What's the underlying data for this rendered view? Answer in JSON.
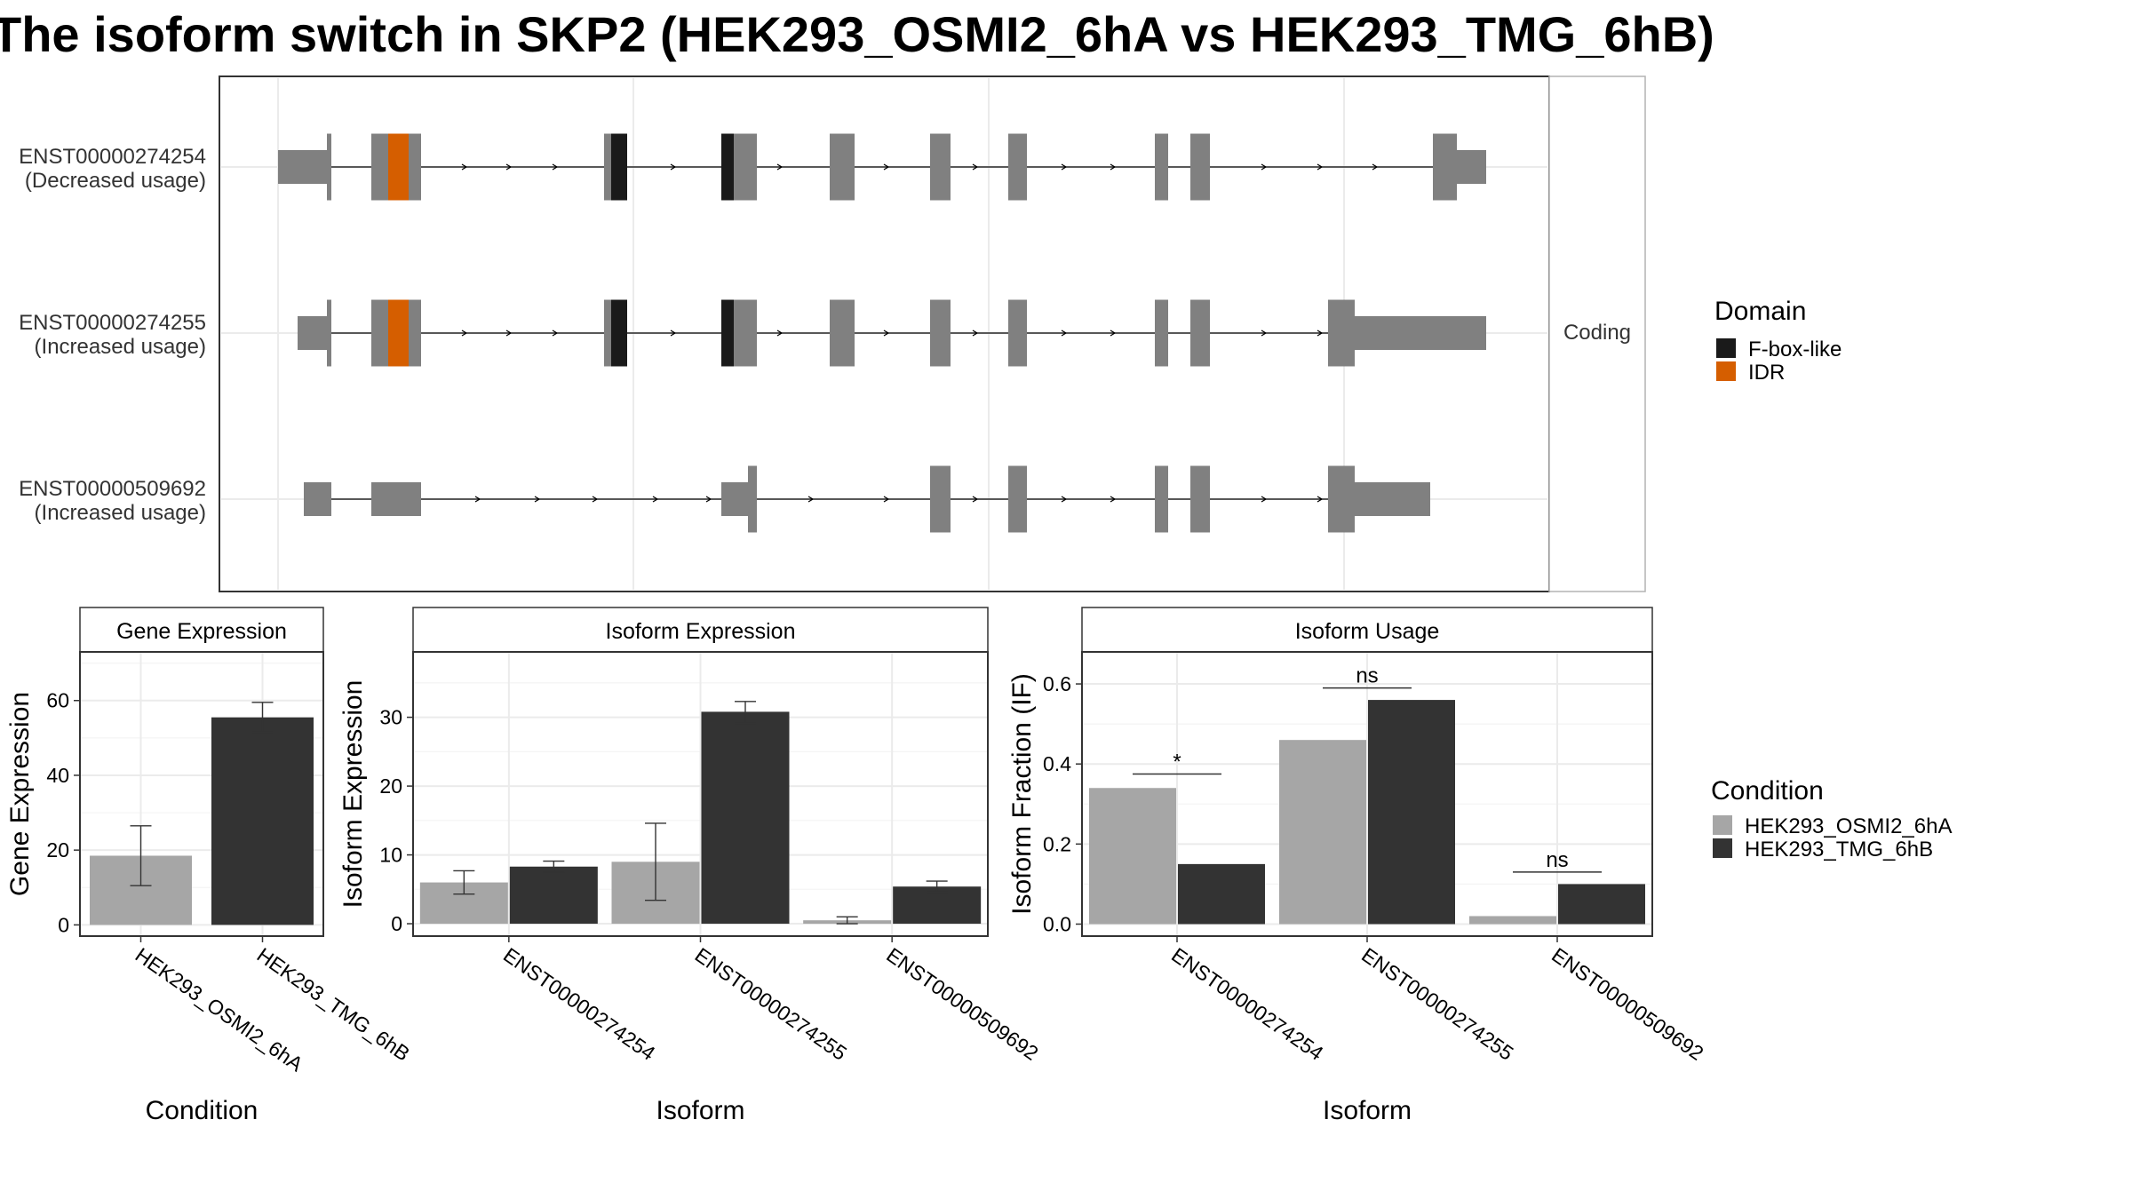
{
  "title": "The isoform switch in SKP2 (HEK293_OSMI2_6hA vs HEK293_TMG_6hB)",
  "colors": {
    "exon": "#808080",
    "fbox": "#1a1a1a",
    "idr": "#d55e00",
    "cond1": "#a6a6a6",
    "cond2": "#333333",
    "grid": "#ebebeb",
    "frame": "#333333"
  },
  "structure": {
    "facet_label": "Coding",
    "legend": {
      "title": "Domain",
      "items": [
        {
          "name": "F-box-like",
          "color": "#1a1a1a"
        },
        {
          "name": "IDR",
          "color": "#d55e00"
        }
      ]
    },
    "transcripts": [
      {
        "id": "ENST00000274254",
        "usage": "(Decreased usage)"
      },
      {
        "id": "ENST00000274255",
        "usage": "(Increased usage)"
      },
      {
        "id": "ENST00000509692",
        "usage": "(Increased usage)"
      }
    ]
  },
  "condition_legend": {
    "title": "Condition",
    "items": [
      {
        "name": "HEK293_OSMI2_6hA",
        "color": "#a6a6a6"
      },
      {
        "name": "HEK293_TMG_6hB",
        "color": "#333333"
      }
    ]
  },
  "chart_data": [
    {
      "type": "bar",
      "title": "Gene Expression",
      "xlabel": "Condition",
      "ylabel": "Gene Expression",
      "categories": [
        "HEK293_OSMI2_6hA",
        "HEK293_TMG_6hB"
      ],
      "values": [
        18.5,
        55.5
      ],
      "errors": [
        [
          10.5,
          26.5
        ],
        [
          51.5,
          59.5
        ]
      ],
      "ylim": [
        -3,
        73
      ],
      "yticks": [
        0,
        20,
        40,
        60
      ],
      "grid": true
    },
    {
      "type": "bar",
      "title": "Isoform Expression",
      "xlabel": "Isoform",
      "ylabel": "Isoform Expression",
      "categories": [
        "ENST00000274254",
        "ENST00000274255",
        "ENST00000509692"
      ],
      "series": [
        {
          "name": "HEK293_OSMI2_6hA",
          "values": [
            6.0,
            9.0,
            0.5
          ],
          "errors": [
            [
              4.3,
              7.7
            ],
            [
              3.4,
              14.6
            ],
            [
              0.0,
              1.0
            ]
          ]
        },
        {
          "name": "HEK293_TMG_6hB",
          "values": [
            8.3,
            30.8,
            5.4
          ],
          "errors": [
            [
              7.5,
              9.1
            ],
            [
              29.1,
              32.3
            ],
            [
              4.6,
              6.2
            ]
          ]
        }
      ],
      "ylim": [
        -1.8,
        39.5
      ],
      "yticks": [
        0,
        10,
        20,
        30
      ],
      "grid": true
    },
    {
      "type": "bar",
      "title": "Isoform Usage",
      "xlabel": "Isoform",
      "ylabel": "Isoform Fraction (IF)",
      "categories": [
        "ENST00000274254",
        "ENST00000274255",
        "ENST00000509692"
      ],
      "series": [
        {
          "name": "HEK293_OSMI2_6hA",
          "values": [
            0.34,
            0.46,
            0.02
          ]
        },
        {
          "name": "HEK293_TMG_6hB",
          "values": [
            0.15,
            0.56,
            0.1
          ]
        }
      ],
      "significance": [
        "*",
        "ns",
        "ns"
      ],
      "sig_levels": [
        0.375,
        0.59,
        0.13
      ],
      "ylim": [
        -0.03,
        0.68
      ],
      "yticks": [
        0.0,
        0.2,
        0.4,
        0.6
      ],
      "ytick_labels": [
        "0.0",
        "0.2",
        "0.4",
        "0.6"
      ],
      "grid": true
    }
  ]
}
